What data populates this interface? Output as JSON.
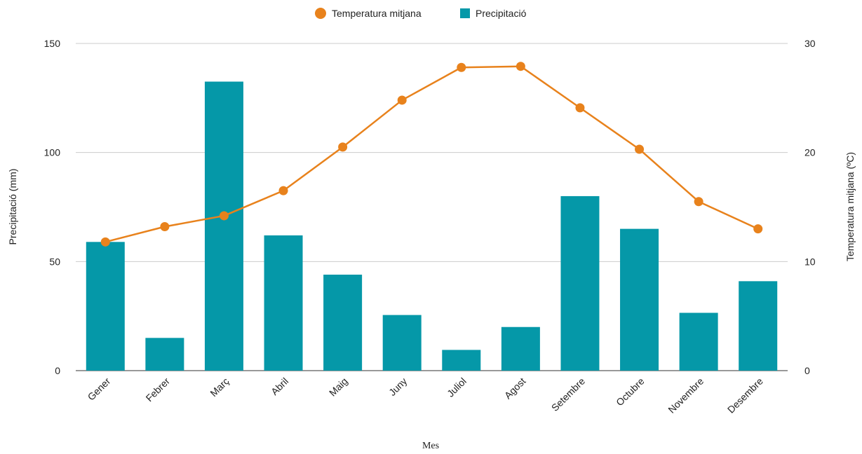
{
  "chart_data": {
    "type": "bar",
    "categories": [
      "Gener",
      "Febrer",
      "Març",
      "Abril",
      "Maig",
      "Juny",
      "Juliol",
      "Agost",
      "Setembre",
      "Octubre",
      "Novembre",
      "Desembre"
    ],
    "series": [
      {
        "name": "Precipitació",
        "type": "bar",
        "axis": "left",
        "color": "#0598a8",
        "values": [
          59,
          15,
          132.5,
          62,
          44,
          25.5,
          9.5,
          20,
          80,
          65,
          26.5,
          41
        ]
      },
      {
        "name": "Temperatura mitjana",
        "type": "line",
        "axis": "right",
        "color": "#e8821c",
        "values": [
          11.8,
          13.2,
          14.2,
          16.5,
          20.5,
          24.8,
          27.8,
          27.9,
          24.1,
          20.3,
          15.5,
          13.0
        ]
      }
    ],
    "xlabel": "Mes",
    "ylabel_left": "Precipitació (mm)",
    "ylabel_right": "Temperatura mitjana (ºC)",
    "ylim_left": [
      0,
      150
    ],
    "yticks_left": [
      "0",
      "50",
      "100",
      "150"
    ],
    "ylim_right": [
      0,
      30
    ],
    "yticks_right": [
      "0",
      "10",
      "20",
      "30"
    ],
    "grid": true,
    "legend_position": "top"
  }
}
